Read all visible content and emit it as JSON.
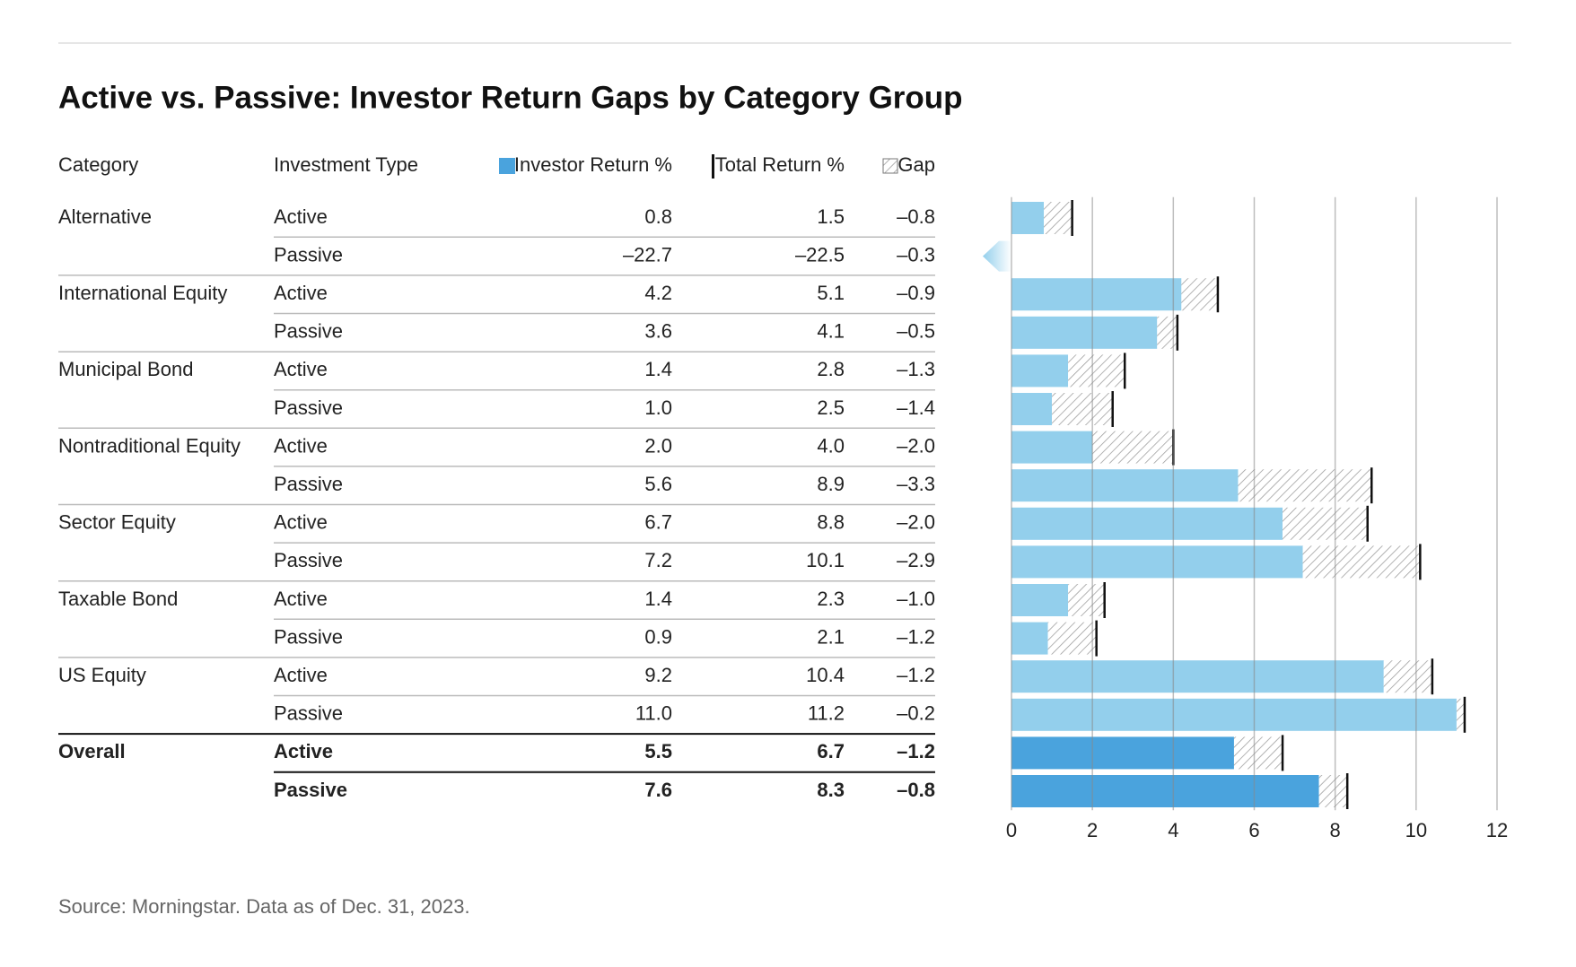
{
  "chart_data": {
    "type": "table-bar",
    "title": "Active vs. Passive: Investor Return Gaps by Category Group",
    "group_header": "Category",
    "category_header": "Investment Type",
    "groups": [
      "Alternative",
      null,
      "International Equity",
      null,
      "Municipal Bond",
      null,
      "Nontraditional Equity",
      null,
      "Sector Equity",
      null,
      "Taxable Bond",
      null,
      "US Equity",
      null,
      "Overall",
      null
    ],
    "categories": [
      "Active",
      "Passive",
      "Active",
      "Passive",
      "Active",
      "Passive",
      "Active",
      "Passive",
      "Active",
      "Passive",
      "Active",
      "Passive",
      "Active",
      "Passive",
      "Active",
      "Passive"
    ],
    "series": [
      {
        "name": "Investor Return %",
        "color": "#93cfec",
        "values": [
          0.8,
          -22.7,
          4.2,
          3.6,
          1.4,
          1.0,
          2.0,
          5.6,
          6.7,
          7.2,
          1.4,
          0.9,
          9.2,
          11.0,
          5.5,
          7.6
        ],
        "value_labels": [
          "0.8",
          "–22.7",
          "4.2",
          "3.6",
          "1.4",
          "1.0",
          "2.0",
          "5.6",
          "6.7",
          "7.2",
          "1.4",
          "0.9",
          "9.2",
          "11.0",
          "5.5",
          "7.6"
        ]
      },
      {
        "name": "Total Return %",
        "color": "#111111",
        "values": [
          1.5,
          -22.5,
          5.1,
          4.1,
          2.8,
          2.5,
          4.0,
          8.9,
          8.8,
          10.1,
          2.3,
          2.1,
          10.4,
          11.2,
          6.7,
          8.3
        ],
        "value_labels": [
          "1.5",
          "–22.5",
          "5.1",
          "4.1",
          "2.8",
          "2.5",
          "4.0",
          "8.9",
          "8.8",
          "10.1",
          "2.3",
          "2.1",
          "10.4",
          "11.2",
          "6.7",
          "8.3"
        ]
      },
      {
        "name": "Gap",
        "color": "#888888",
        "values": [
          -0.8,
          -0.3,
          -0.9,
          -0.5,
          -1.3,
          -1.4,
          -2.0,
          -3.3,
          -2.0,
          -2.9,
          -1.0,
          -1.2,
          -1.2,
          -0.2,
          -1.2,
          -0.8
        ],
        "value_labels": [
          "–0.8",
          "–0.3",
          "–0.9",
          "–0.5",
          "–1.3",
          "–1.4",
          "–2.0",
          "–3.3",
          "–2.0",
          "–2.9",
          "–1.0",
          "–1.2",
          "–1.2",
          "–0.2",
          "–1.2",
          "–0.8"
        ]
      }
    ],
    "highlight_rows": [
      14,
      15
    ],
    "highlight_color": "#4aa3dd",
    "xlim": [
      0,
      12
    ],
    "xticks": [
      0,
      2,
      4,
      6,
      8,
      10,
      12
    ],
    "grid": true,
    "source": "Source: Morningstar. Data as of Dec. 31, 2023."
  }
}
